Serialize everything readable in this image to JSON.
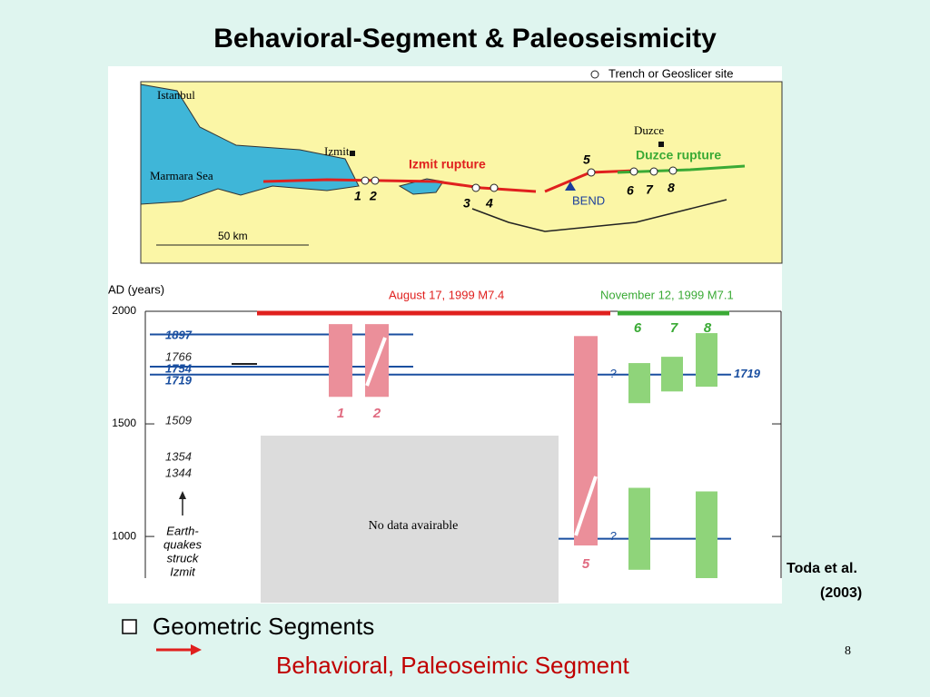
{
  "slide": {
    "title": "Behavioral-Segment & Paleoseismicity",
    "bullet": "Geometric Segments",
    "sub_bullet": "Behavioral, Paleoseimic Segment",
    "citation": [
      "Toda et al.",
      "(2003)"
    ],
    "page_number": "8"
  },
  "map": {
    "legend": "Trench or Geoslicer site",
    "places": [
      "Istanbul",
      "Izmit",
      "Marmara Sea",
      "Duzce"
    ],
    "ruptures": [
      "Izmit rupture",
      "Duzce rupture"
    ],
    "bend": "BEND",
    "scale": "50 km",
    "sites": [
      "1",
      "2",
      "3",
      "4",
      "5",
      "6",
      "7",
      "8"
    ]
  },
  "plot": {
    "axis_label": "AD (years)",
    "ylim": [
      815,
      2000
    ],
    "yticks": [
      1000,
      1500,
      2000
    ],
    "events": [
      {
        "name": "August 17, 1999 M7.4",
        "color": "#e0201e"
      },
      {
        "name": "November 12, 1999 M7.1",
        "color": "#3aaa35"
      }
    ],
    "earthquake_years": [
      1897,
      1766,
      1754,
      1719,
      1509,
      1354,
      1344
    ],
    "unknown_line": 990,
    "question": "?",
    "note": [
      "Earth-",
      "quakes",
      "struck",
      "Izmit"
    ],
    "no_data": "No data avairable",
    "sites": [
      {
        "label": "1",
        "color": "#eb8f9a",
        "ranges": [
          [
            1620,
            1943
          ]
        ]
      },
      {
        "label": "2",
        "color": "#eb8f9a",
        "ranges": [
          [
            1620,
            1943
          ]
        ]
      },
      {
        "label": "5",
        "color": "#eb8f9a",
        "ranges": [
          [
            960,
            1890
          ]
        ]
      },
      {
        "label": "6",
        "color": "#8fd47a",
        "ranges": [
          [
            1592,
            1770
          ],
          [
            852,
            1216
          ]
        ]
      },
      {
        "label": "7",
        "color": "#8fd47a",
        "ranges": [
          [
            1644,
            1798
          ]
        ]
      },
      {
        "label": "8",
        "color": "#8fd47a",
        "ranges": [
          [
            1665,
            1903
          ],
          [
            815,
            1200
          ]
        ]
      }
    ]
  }
}
